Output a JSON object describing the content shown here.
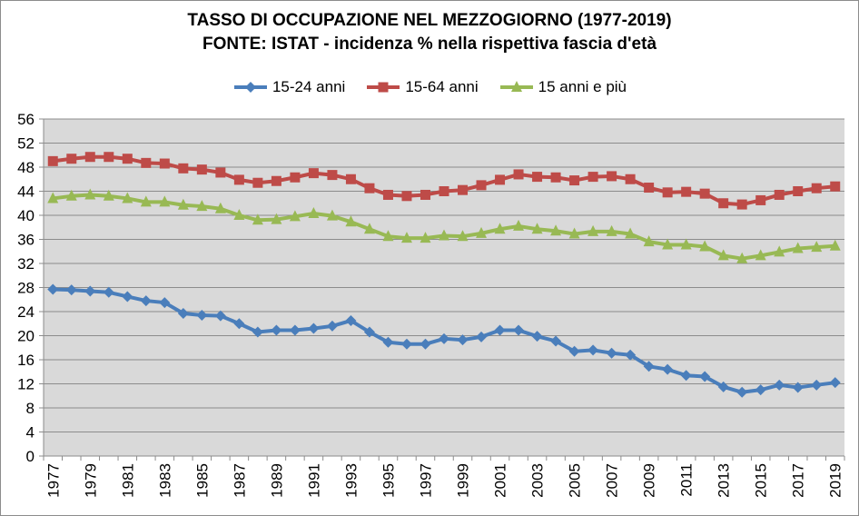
{
  "chart_data": {
    "type": "line",
    "title": "TASSO DI OCCUPAZIONE NEL MEZZOGIORNO (1977-2019)",
    "subtitle": "FONTE: ISTAT - incidenza % nella rispettiva fascia d'età",
    "xlabel": "",
    "ylabel": "",
    "ylim": [
      0,
      56
    ],
    "yticks": [
      "0",
      "4",
      "8",
      "12",
      "16",
      "20",
      "24",
      "28",
      "32",
      "36",
      "40",
      "44",
      "48",
      "52",
      "56"
    ],
    "grid": true,
    "legend_position": "top",
    "x": [
      1977,
      1978,
      1979,
      1980,
      1981,
      1982,
      1983,
      1984,
      1985,
      1986,
      1987,
      1988,
      1989,
      1990,
      1991,
      1992,
      1993,
      1994,
      1995,
      1996,
      1997,
      1998,
      1999,
      2000,
      2001,
      2002,
      2003,
      2004,
      2005,
      2006,
      2007,
      2008,
      2009,
      2010,
      2011,
      2012,
      2013,
      2014,
      2015,
      2016,
      2017,
      2018,
      2019
    ],
    "xtick_labels": [
      "1977",
      "1979",
      "1981",
      "1983",
      "1985",
      "1987",
      "1989",
      "1991",
      "1993",
      "1995",
      "1997",
      "1999",
      "2001",
      "2003",
      "2005",
      "2007",
      "2009",
      "2011",
      "2013",
      "2015",
      "2017",
      "2019"
    ],
    "series": [
      {
        "name": "15-24 anni",
        "color": "#4a7ebb",
        "marker": "diamond",
        "values": [
          27.7,
          27.6,
          27.4,
          27.2,
          26.5,
          25.8,
          25.5,
          23.7,
          23.4,
          23.3,
          22.0,
          20.6,
          20.9,
          20.9,
          21.2,
          21.6,
          22.5,
          20.6,
          18.9,
          18.6,
          18.6,
          19.5,
          19.3,
          19.8,
          20.9,
          20.9,
          19.9,
          19.1,
          17.4,
          17.6,
          17.1,
          16.8,
          14.9,
          14.4,
          13.4,
          13.2,
          11.5,
          10.6,
          11.0,
          11.8,
          11.4,
          11.8,
          12.2
        ]
      },
      {
        "name": "15-64 anni",
        "color": "#be4b48",
        "marker": "square",
        "values": [
          49.0,
          49.4,
          49.7,
          49.7,
          49.4,
          48.7,
          48.6,
          47.8,
          47.6,
          47.1,
          45.9,
          45.4,
          45.7,
          46.3,
          47.0,
          46.7,
          46.0,
          44.5,
          43.4,
          43.2,
          43.4,
          44.0,
          44.2,
          45.0,
          45.9,
          46.8,
          46.4,
          46.3,
          45.8,
          46.4,
          46.5,
          46.0,
          44.6,
          43.8,
          43.9,
          43.6,
          42.0,
          41.8,
          42.5,
          43.4,
          44.0,
          44.5,
          44.8
        ]
      },
      {
        "name": "15 anni e più",
        "color": "#98b954",
        "marker": "triangle",
        "values": [
          42.8,
          43.2,
          43.4,
          43.2,
          42.8,
          42.2,
          42.2,
          41.7,
          41.5,
          41.1,
          40.0,
          39.2,
          39.3,
          39.8,
          40.3,
          39.9,
          38.9,
          37.7,
          36.5,
          36.2,
          36.2,
          36.6,
          36.5,
          37.0,
          37.7,
          38.2,
          37.7,
          37.4,
          36.9,
          37.3,
          37.3,
          36.9,
          35.6,
          35.1,
          35.1,
          34.8,
          33.3,
          32.8,
          33.3,
          33.9,
          34.5,
          34.7,
          34.9
        ]
      }
    ]
  }
}
